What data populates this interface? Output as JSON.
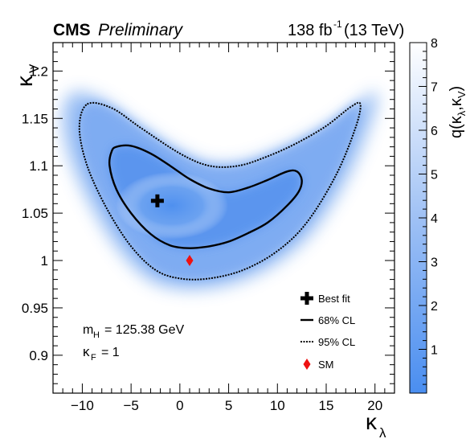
{
  "header": {
    "experiment": "CMS",
    "status": "Preliminary",
    "lumi_main": "138 fb",
    "lumi_exp": "-1",
    "lumi_energy": "(13 TeV)"
  },
  "annotations": {
    "mh_symbol": "m",
    "mh_sub": "H",
    "mh_value": "= 125.38 GeV",
    "kf_symbol": "κ",
    "kf_sub": "F",
    "kf_value": "= 1"
  },
  "axes": {
    "x_symbol": "κ",
    "x_sub": "λ",
    "y_symbol": "κ",
    "y_sub": "V",
    "z_label": "q(κ",
    "z_sub1": "λ",
    "z_mid": ",κ",
    "z_sub2": "V",
    "z_end": ")"
  },
  "legend": {
    "best_fit": "Best fit",
    "cl68": "68% CL",
    "cl95": "95% CL",
    "sm": "SM"
  },
  "chart_data": {
    "type": "heatmap",
    "title": "",
    "xlabel": "κ_λ",
    "ylabel": "κ_V",
    "zlabel": "q(κ_λ,κ_V)",
    "xlim": [
      -13,
      22
    ],
    "ylim": [
      0.86,
      1.23
    ],
    "zlim": [
      0,
      8
    ],
    "x_ticks": [
      -10,
      -5,
      0,
      5,
      10,
      15,
      20
    ],
    "x_tick_labels": [
      "−10",
      "−5",
      "0",
      "5",
      "10",
      "15",
      "20"
    ],
    "y_ticks": [
      0.9,
      0.95,
      1.0,
      1.05,
      1.1,
      1.15,
      1.2
    ],
    "y_tick_labels": [
      "0.9",
      "0.95",
      "1",
      "1.05",
      "1.1",
      "1.15",
      "1.2"
    ],
    "z_ticks": [
      1,
      2,
      3,
      4,
      5,
      6,
      7,
      8
    ],
    "z_tick_labels": [
      "1",
      "2",
      "3",
      "4",
      "5",
      "6",
      "7",
      "8"
    ],
    "best_fit": {
      "x": -2.3,
      "y": 1.063
    },
    "sm_point": {
      "x": 1.0,
      "y": 1.0
    },
    "contour_68": [
      [
        -6.5,
        1.12
      ],
      [
        -5.0,
        1.121
      ],
      [
        -3.0,
        1.113
      ],
      [
        -1.0,
        1.1
      ],
      [
        1.0,
        1.086
      ],
      [
        3.0,
        1.076
      ],
      [
        5.0,
        1.072
      ],
      [
        7.0,
        1.077
      ],
      [
        9.0,
        1.085
      ],
      [
        11.0,
        1.094
      ],
      [
        12.0,
        1.094
      ],
      [
        12.5,
        1.085
      ],
      [
        12.2,
        1.073
      ],
      [
        11.0,
        1.058
      ],
      [
        9.0,
        1.04
      ],
      [
        7.0,
        1.029
      ],
      [
        5.0,
        1.02
      ],
      [
        3.0,
        1.015
      ],
      [
        1.0,
        1.013
      ],
      [
        -1.0,
        1.016
      ],
      [
        -3.0,
        1.028
      ],
      [
        -5.0,
        1.05
      ],
      [
        -6.5,
        1.075
      ],
      [
        -7.2,
        1.1
      ],
      [
        -7.0,
        1.115
      ]
    ],
    "contour_95": [
      [
        -9.5,
        1.165
      ],
      [
        -7.0,
        1.161
      ],
      [
        -4.0,
        1.14
      ],
      [
        0.0,
        1.113
      ],
      [
        3.0,
        1.1
      ],
      [
        6.0,
        1.1
      ],
      [
        9.0,
        1.11
      ],
      [
        12.0,
        1.124
      ],
      [
        15.0,
        1.142
      ],
      [
        17.5,
        1.162
      ],
      [
        18.5,
        1.165
      ],
      [
        18.0,
        1.14
      ],
      [
        16.0,
        1.09
      ],
      [
        13.0,
        1.04
      ],
      [
        10.0,
        1.01
      ],
      [
        6.5,
        0.99
      ],
      [
        3.0,
        0.981
      ],
      [
        0.0,
        0.981
      ],
      [
        -2.5,
        0.99
      ],
      [
        -5.0,
        1.015
      ],
      [
        -7.5,
        1.055
      ],
      [
        -9.5,
        1.1
      ],
      [
        -10.3,
        1.14
      ]
    ],
    "grid": false,
    "legend_position": "bottom-right"
  }
}
